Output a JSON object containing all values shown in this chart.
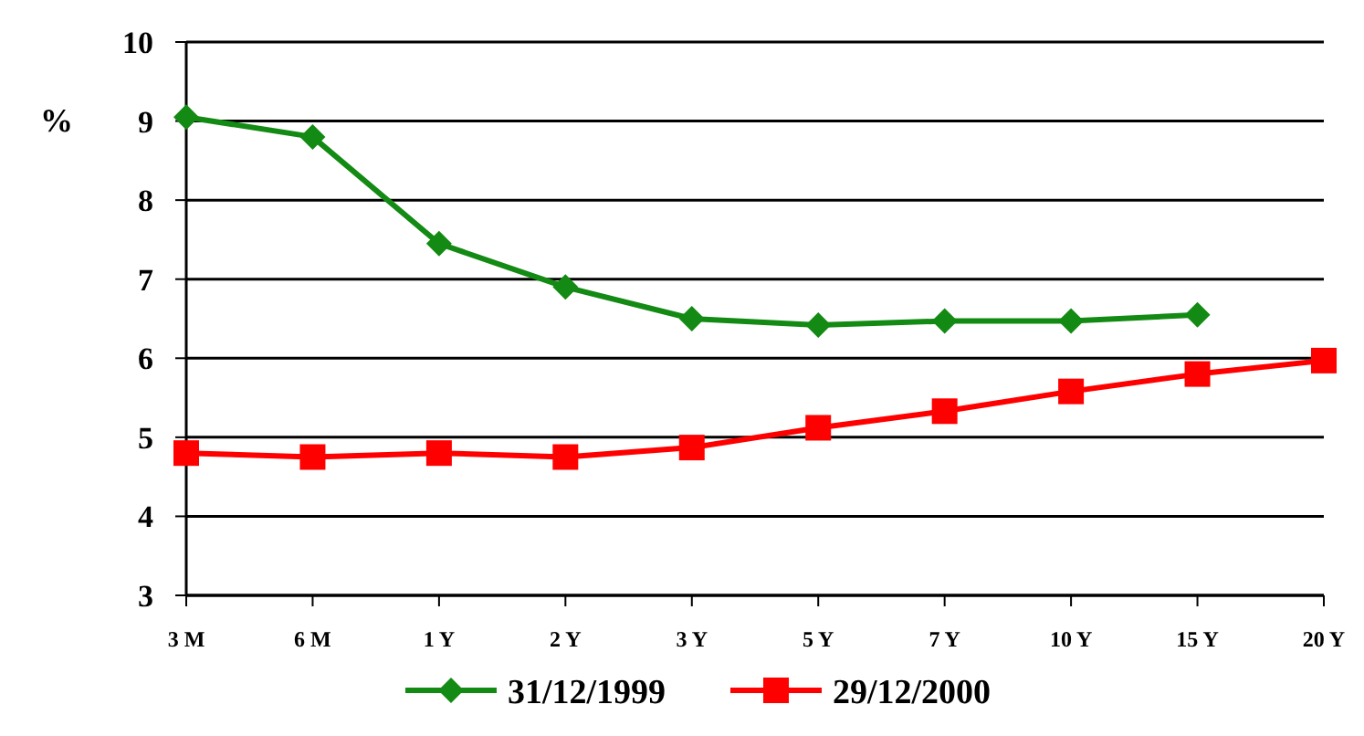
{
  "chart_data": {
    "type": "line",
    "ylabel": "%",
    "categories": [
      "3 M",
      "6 M",
      "1 Y",
      "2 Y",
      "3 Y",
      "5 Y",
      "7 Y",
      "10 Y",
      "15 Y",
      "20 Y"
    ],
    "series": [
      {
        "name": "31/12/1999",
        "color": "#138a13",
        "marker": "diamond",
        "values": [
          9.05,
          8.8,
          7.45,
          6.9,
          6.5,
          6.42,
          6.47,
          6.47,
          6.55,
          null
        ]
      },
      {
        "name": "29/12/2000",
        "color": "#ff0000",
        "marker": "square",
        "values": [
          4.8,
          4.75,
          4.8,
          4.75,
          4.87,
          5.12,
          5.33,
          5.58,
          5.8,
          5.97
        ]
      }
    ],
    "ylim": [
      3,
      10
    ],
    "yticks": [
      3,
      4,
      5,
      6,
      7,
      8,
      9,
      10
    ],
    "grid": "y",
    "legend": "bottom",
    "line_style": "solid"
  }
}
